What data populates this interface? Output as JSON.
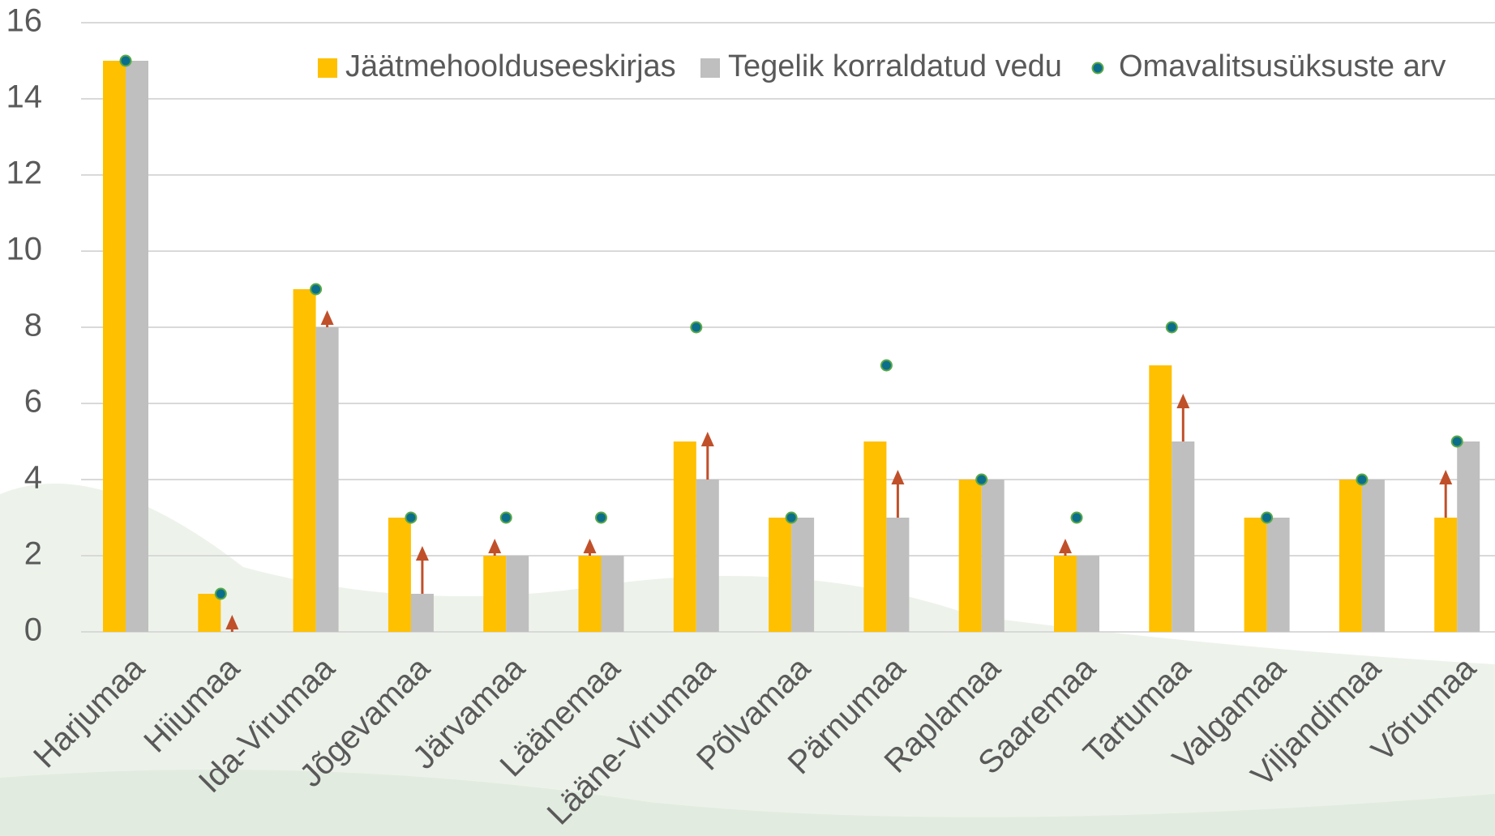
{
  "chart_data": {
    "type": "bar",
    "categories": [
      "Harjumaa",
      "Hiiumaa",
      "Ida-Virumaa",
      "Jõgevamaa",
      "Järvamaa",
      "Läänemaa",
      "Lääne-Virumaa",
      "Põlvamaa",
      "Pärnumaa",
      "Raplamaa",
      "Saaremaa",
      "Tartumaa",
      "Valgamaa",
      "Viljandimaa",
      "Võrumaa"
    ],
    "series": [
      {
        "name": "Jäätmehoolduseeskirjas",
        "color": "#ffc000",
        "values": [
          15,
          1,
          9,
          3,
          2,
          2,
          5,
          3,
          5,
          4,
          2,
          7,
          3,
          4,
          3
        ]
      },
      {
        "name": "Tegelik korraldatud vedu",
        "color": "#bfbfbf",
        "values": [
          15,
          0,
          8,
          1,
          2,
          2,
          4,
          3,
          3,
          4,
          2,
          5,
          3,
          4,
          5
        ]
      },
      {
        "name": "Omavalitsusüksuste arv",
        "type": "scatter",
        "color": "#0b6e8c",
        "values": [
          15,
          1,
          9,
          3,
          3,
          3,
          8,
          3,
          7,
          4,
          3,
          8,
          3,
          4,
          5
        ]
      }
    ],
    "ylim": [
      0,
      16
    ],
    "yticks": [
      0,
      2,
      4,
      6,
      8,
      10,
      12,
      14,
      16
    ],
    "grid": true,
    "legend": "top"
  }
}
